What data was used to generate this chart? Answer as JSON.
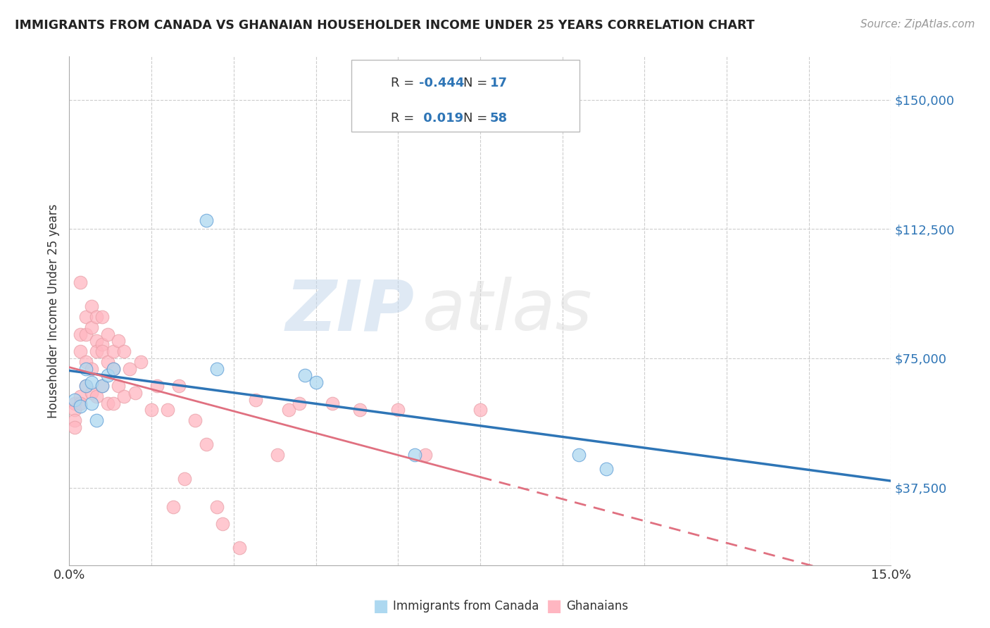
{
  "title": "IMMIGRANTS FROM CANADA VS GHANAIAN HOUSEHOLDER INCOME UNDER 25 YEARS CORRELATION CHART",
  "source": "Source: ZipAtlas.com",
  "ylabel": "Householder Income Under 25 years",
  "xlim": [
    0.0,
    0.15
  ],
  "ylim": [
    15000,
    162500
  ],
  "yticks": [
    37500,
    75000,
    112500,
    150000
  ],
  "ytick_labels": [
    "$37,500",
    "$75,000",
    "$112,500",
    "$150,000"
  ],
  "xticks": [
    0.0,
    0.015,
    0.03,
    0.045,
    0.06,
    0.075,
    0.09,
    0.105,
    0.12,
    0.135,
    0.15
  ],
  "color_canada": "#ADD8F0",
  "color_ghana": "#FFB6C1",
  "color_canada_edge": "#5B9BD5",
  "color_ghana_edge": "#E8A0A8",
  "color_canada_line": "#2E75B6",
  "color_ghana_line": "#E07080",
  "background_color": "#FFFFFF",
  "grid_color": "#CCCCCC",
  "watermark_zip": "ZIP",
  "watermark_atlas": "atlas",
  "canada_x": [
    0.001,
    0.002,
    0.003,
    0.003,
    0.004,
    0.004,
    0.005,
    0.006,
    0.007,
    0.008,
    0.025,
    0.027,
    0.043,
    0.045,
    0.063,
    0.093,
    0.098
  ],
  "canada_y": [
    63000,
    61000,
    67000,
    72000,
    62000,
    68000,
    57000,
    67000,
    70000,
    72000,
    115000,
    72000,
    70000,
    68000,
    47000,
    47000,
    43000
  ],
  "ghana_x": [
    0.001,
    0.001,
    0.001,
    0.001,
    0.002,
    0.002,
    0.002,
    0.002,
    0.002,
    0.003,
    0.003,
    0.003,
    0.003,
    0.004,
    0.004,
    0.004,
    0.004,
    0.005,
    0.005,
    0.005,
    0.005,
    0.006,
    0.006,
    0.006,
    0.006,
    0.007,
    0.007,
    0.007,
    0.008,
    0.008,
    0.008,
    0.009,
    0.009,
    0.01,
    0.01,
    0.011,
    0.012,
    0.013,
    0.015,
    0.016,
    0.018,
    0.019,
    0.02,
    0.021,
    0.023,
    0.025,
    0.027,
    0.028,
    0.031,
    0.034,
    0.038,
    0.04,
    0.042,
    0.048,
    0.053,
    0.06,
    0.065,
    0.075
  ],
  "ghana_y": [
    62000,
    60000,
    57000,
    55000,
    97000,
    82000,
    77000,
    64000,
    62000,
    87000,
    82000,
    74000,
    67000,
    90000,
    84000,
    72000,
    65000,
    87000,
    80000,
    77000,
    64000,
    87000,
    79000,
    77000,
    67000,
    82000,
    74000,
    62000,
    77000,
    72000,
    62000,
    80000,
    67000,
    77000,
    64000,
    72000,
    65000,
    74000,
    60000,
    67000,
    60000,
    32000,
    67000,
    40000,
    57000,
    50000,
    32000,
    27000,
    20000,
    63000,
    47000,
    60000,
    62000,
    62000,
    60000,
    60000,
    47000,
    60000
  ]
}
